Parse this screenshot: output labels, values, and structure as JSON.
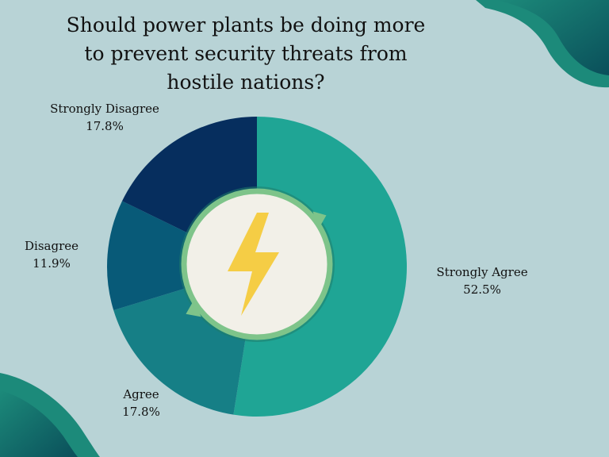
{
  "chart_data": {
    "type": "pie",
    "title_lines": [
      "Should power plants be doing more",
      "to prevent security threats from",
      "hostile nations?"
    ],
    "slices": [
      {
        "label": "Strongly Agree",
        "value": 52.5,
        "value_text": "52.5%",
        "color": "#1fa595"
      },
      {
        "label": "Agree",
        "value": 17.8,
        "value_text": "17.8%",
        "color": "#167f86"
      },
      {
        "label": "Disagree",
        "value": 11.9,
        "value_text": "11.9%",
        "color": "#085a78"
      },
      {
        "label": "Strongly Disagree",
        "value": 17.8,
        "value_text": "17.8%",
        "color": "#062e5e"
      }
    ],
    "start_angle_deg": 0,
    "direction": "clockwise"
  },
  "theme": {
    "background": "#b8d3d6",
    "corner_wave_dark": "#0a5a5a",
    "corner_wave_light": "#1c8a7a",
    "center_circle": "#f2f0e8",
    "center_ring": "#7ec48a",
    "bolt_color": "#f5cd45"
  },
  "icons": {
    "center": "lightning-bolt-icon",
    "ring": "refresh-arrows-icon"
  }
}
